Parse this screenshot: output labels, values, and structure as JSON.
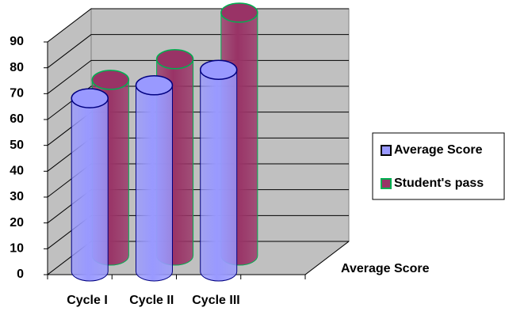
{
  "chart_data": {
    "type": "bar3d",
    "categories": [
      "Cycle I",
      "Cycle II",
      "Cycle III"
    ],
    "series": [
      {
        "name": "Average Score",
        "color": "#9999ff",
        "values": [
          67,
          72,
          78
        ]
      },
      {
        "name": "Student's pass",
        "color": "#993366",
        "values": [
          68,
          76,
          94
        ]
      }
    ],
    "depth_label": "Average Score",
    "ylim": [
      0,
      90
    ],
    "yticks": [
      0,
      10,
      20,
      30,
      40,
      50,
      60,
      70,
      80,
      90
    ],
    "grid": true,
    "legend": "right"
  }
}
